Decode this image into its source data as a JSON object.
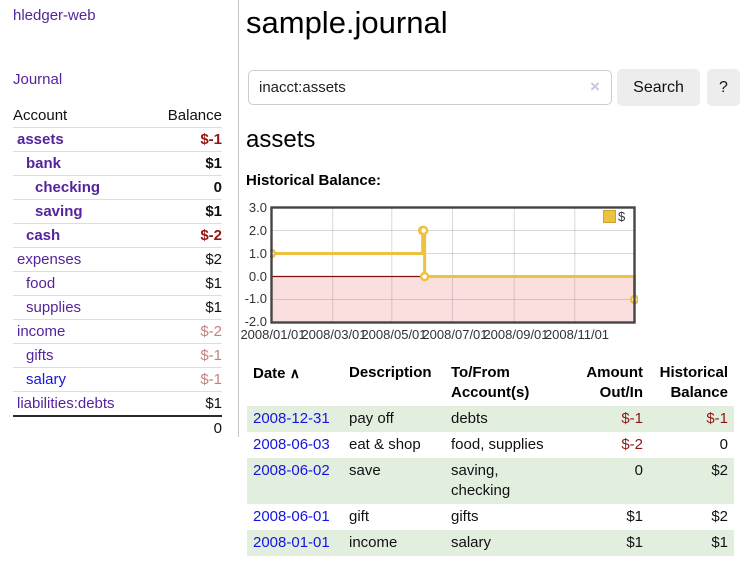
{
  "sidebar": {
    "app_title": "hledger-web",
    "nav_journal": "Journal",
    "accounts": {
      "headers": {
        "account": "Account",
        "balance": "Balance"
      },
      "rows": [
        {
          "name": "assets",
          "balance": "$-1",
          "level": "1",
          "bold": "true",
          "bal": "neg",
          "link": "purple"
        },
        {
          "name": "bank",
          "balance": "$1",
          "level": "2",
          "bold": "true",
          "bal": "pos",
          "link": "purple"
        },
        {
          "name": "checking",
          "balance": "0",
          "level": "3",
          "bold": "true",
          "bal": "pos",
          "link": "purple"
        },
        {
          "name": "saving",
          "balance": "$1",
          "level": "3",
          "bold": "true",
          "bal": "pos",
          "link": "purple"
        },
        {
          "name": "cash",
          "balance": "$-2",
          "level": "2",
          "bold": "true",
          "bal": "neg",
          "link": "purple"
        },
        {
          "name": "expenses",
          "balance": "$2",
          "level": "1",
          "bold": "false",
          "bal": "pos",
          "link": "purple"
        },
        {
          "name": "food",
          "balance": "$1",
          "level": "2",
          "bold": "false",
          "bal": "pos",
          "link": "purple"
        },
        {
          "name": "supplies",
          "balance": "$1",
          "level": "2",
          "bold": "false",
          "bal": "pos",
          "link": "purple"
        },
        {
          "name": "income",
          "balance": "$-2",
          "level": "1",
          "bold": "false",
          "bal": "negmuted",
          "link": "purple"
        },
        {
          "name": "gifts",
          "balance": "$-1",
          "level": "2",
          "bold": "false",
          "bal": "negmuted",
          "link": "purple"
        },
        {
          "name": "salary",
          "balance": "$-1",
          "level": "2",
          "bold": "false",
          "bal": "negmuted",
          "link": "blue"
        },
        {
          "name": "liabilities:debts",
          "balance": "$1",
          "level": "1",
          "bold": "false",
          "bal": "pos",
          "link": "purple"
        }
      ],
      "total": "0"
    }
  },
  "main": {
    "title": "sample.journal",
    "search": {
      "value": "inacct:assets",
      "clear_icon": "×",
      "button": "Search",
      "help_button": "?"
    },
    "account_heading": "assets",
    "chart_label": "Historical Balance:"
  },
  "chart_data": {
    "type": "line",
    "step": true,
    "title": "Historical Balance",
    "series": [
      {
        "name": "$",
        "color": "#edc240",
        "points": [
          [
            "2008-01-01",
            1
          ],
          [
            "2008-06-01",
            2
          ],
          [
            "2008-06-02",
            2
          ],
          [
            "2008-06-03",
            0
          ],
          [
            "2008-12-31",
            -1
          ]
        ]
      }
    ],
    "xrange": [
      "2008-01-01",
      "2008-12-31"
    ],
    "ylim": [
      -2,
      3
    ],
    "yticks": [
      "3.0",
      "2.0",
      "1.0",
      "0.0",
      "-1.0",
      "-2.0"
    ],
    "xticks": [
      "2008/01/01",
      "2008/03/01",
      "2008/05/01",
      "2008/07/01",
      "2008/09/01",
      "2008/11/01"
    ],
    "legend": {
      "label": "$",
      "position": "top-right"
    },
    "grid": true,
    "negative_region_color": "#fbdfdf",
    "zero_line_color": "#7d1010"
  },
  "register": {
    "headers": {
      "date": "Date",
      "sort_arrow": "∧",
      "description": "Description",
      "accounts": "To/From Account(s)",
      "amount": "Amount Out/In",
      "balance": "Historical Balance"
    },
    "rows": [
      {
        "date": "2008-12-31",
        "description": "pay off",
        "accounts": "debts",
        "amount": "$-1",
        "balance": "$-1",
        "amount_neg": "true",
        "balance_neg": "true"
      },
      {
        "date": "2008-06-03",
        "description": "eat & shop",
        "accounts": "food, supplies",
        "amount": "$-2",
        "balance": "0",
        "amount_neg": "true",
        "balance_neg": "false"
      },
      {
        "date": "2008-06-02",
        "description": "save",
        "accounts": "saving, checking",
        "amount": "0",
        "balance": "$2",
        "amount_neg": "false",
        "balance_neg": "false"
      },
      {
        "date": "2008-06-01",
        "description": "gift",
        "accounts": "gifts",
        "amount": "$1",
        "balance": "$2",
        "amount_neg": "false",
        "balance_neg": "false"
      },
      {
        "date": "2008-01-01",
        "description": "income",
        "accounts": "salary",
        "amount": "$1",
        "balance": "$1",
        "amount_neg": "false",
        "balance_neg": "false"
      }
    ]
  },
  "colors": {
    "link_purple": "#55249c",
    "link_blue": "#1414e0",
    "negative": "#941414",
    "negative_muted": "#c57f7f",
    "row_stripe_green": "#e2efdf",
    "series_gold": "#edc240"
  }
}
